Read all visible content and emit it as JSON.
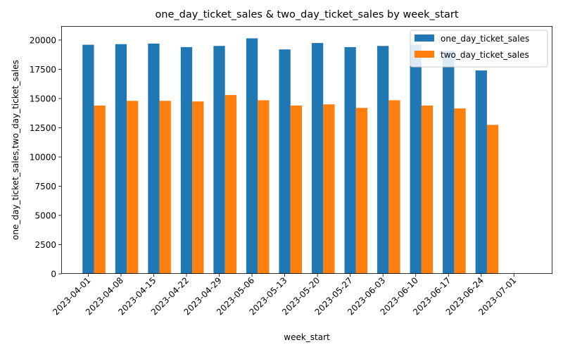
{
  "chart_data": {
    "type": "bar",
    "title": "one_day_ticket_sales & two_day_ticket_sales by week_start",
    "xlabel": "week_start",
    "ylabel": "one_day_ticket_sales,two_day_ticket_sales",
    "categories": [
      "2023-04-01",
      "2023-04-08",
      "2023-04-15",
      "2023-04-22",
      "2023-04-29",
      "2023-05-06",
      "2023-05-13",
      "2023-05-20",
      "2023-05-27",
      "2023-06-03",
      "2023-06-10",
      "2023-06-17",
      "2023-06-24",
      "2023-07-01"
    ],
    "series": [
      {
        "name": "one_day_ticket_sales",
        "color": "#1f77b4",
        "values": [
          19600,
          19650,
          19700,
          19400,
          19500,
          20150,
          19200,
          19750,
          19400,
          19500,
          19600,
          19100,
          17400,
          null
        ]
      },
      {
        "name": "two_day_ticket_sales",
        "color": "#ff7f0e",
        "values": [
          14400,
          14800,
          14800,
          14750,
          15300,
          14850,
          14400,
          14500,
          14200,
          14850,
          14400,
          14150,
          12750,
          null
        ]
      }
    ],
    "ylim": [
      0,
      21200
    ],
    "yticks": [
      0,
      2500,
      5000,
      7500,
      10000,
      12500,
      15000,
      17500,
      20000
    ],
    "ytick_labels": [
      "0",
      "2500",
      "5000",
      "7500",
      "10000",
      "12500",
      "15000",
      "17500",
      "20000"
    ],
    "grid": false,
    "legend": "top-right"
  }
}
